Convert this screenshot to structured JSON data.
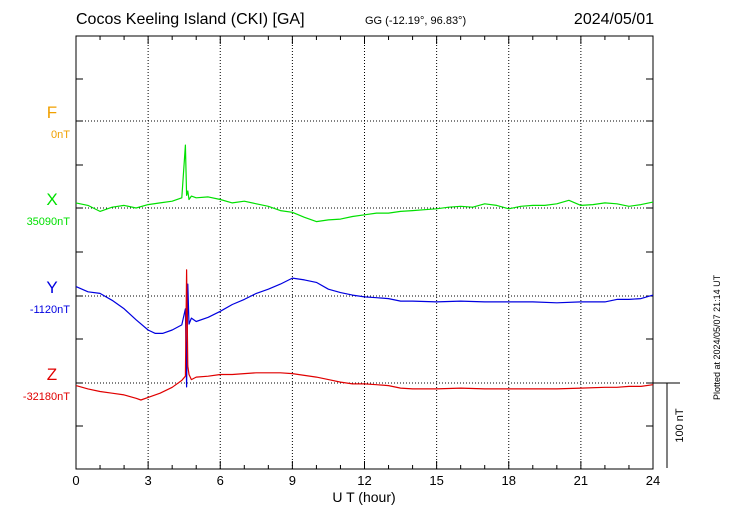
{
  "header": {
    "station": "Cocos Keeling Island (CKI)  [GA]",
    "coords": "GG (-12.19°,  96.83°)",
    "date": "2024/05/01"
  },
  "footer": {
    "plotted": "Plotted at 2024/05/07 21:14 UT"
  },
  "colors": {
    "F": "#f0a000",
    "X": "#00e000",
    "Y": "#0000e0",
    "Z": "#e00000"
  },
  "chart_data": {
    "type": "line",
    "title": "Cocos Keeling Island (CKI)  [GA]",
    "xlabel": "U T (hour)",
    "xlim": [
      0,
      24
    ],
    "xticks": [
      0,
      3,
      6,
      9,
      12,
      15,
      18,
      21,
      24
    ],
    "xtick_labels": [
      "0",
      "3",
      "6",
      "9",
      "12",
      "15",
      "18",
      "21",
      "24"
    ],
    "scale_bar_label": "100 nT",
    "scale_bar_nT": 100,
    "series": [
      {
        "name": "F",
        "baseline_label": "0nT",
        "x": [],
        "y": []
      },
      {
        "name": "X",
        "baseline_label": "35090nT",
        "x": [
          0,
          0.5,
          1,
          1.5,
          2,
          2.5,
          3,
          3.5,
          4,
          4.4,
          4.55,
          4.6,
          4.65,
          4.7,
          4.8,
          5,
          5.5,
          6,
          6.5,
          7,
          7.5,
          8,
          8.5,
          9,
          9.5,
          10,
          10.5,
          11,
          11.5,
          12,
          12.5,
          13,
          13.5,
          14,
          14.5,
          15,
          15.5,
          16,
          16.5,
          17,
          17.5,
          18,
          18.5,
          19,
          19.5,
          20,
          20.5,
          21,
          21.5,
          22,
          22.5,
          23,
          23.5,
          24
        ],
        "y": [
          6,
          3,
          -4,
          1,
          3,
          0,
          4,
          6,
          8,
          12,
          74,
          15,
          20,
          10,
          14,
          12,
          13,
          10,
          6,
          8,
          5,
          2,
          -3,
          -5,
          -11,
          -16,
          -14,
          -13,
          -10,
          -8,
          -6,
          -6,
          -4,
          -3,
          -2,
          -1,
          1,
          2,
          1,
          5,
          3,
          -1,
          2,
          3,
          3,
          5,
          9,
          3,
          4,
          6,
          5,
          2,
          4,
          7
        ]
      },
      {
        "name": "Y",
        "baseline_label": "-1120nT",
        "x": [
          0,
          0.5,
          1,
          1.5,
          2,
          2.5,
          3,
          3.3,
          3.6,
          4,
          4.4,
          4.55,
          4.6,
          4.65,
          4.7,
          4.8,
          5,
          5.5,
          6,
          6.5,
          7,
          7.5,
          8,
          8.5,
          9,
          9.5,
          10,
          10.5,
          11,
          11.5,
          12,
          12.5,
          13,
          13.5,
          14,
          15,
          16,
          17,
          18,
          19,
          20,
          21,
          22,
          22.5,
          23,
          23.5,
          24
        ],
        "y": [
          11,
          5,
          3,
          -5,
          -15,
          -28,
          -40,
          -44,
          -44,
          -40,
          -34,
          -15,
          -107,
          14,
          -33,
          -26,
          -30,
          -25,
          -18,
          -10,
          -4,
          3,
          8,
          14,
          21,
          19,
          16,
          8,
          4,
          1,
          -1,
          -2,
          -3,
          -6,
          -6,
          -7,
          -6,
          -7,
          -7,
          -7,
          -8,
          -7,
          -7,
          -4,
          -4,
          -3,
          1
        ]
      },
      {
        "name": "Z",
        "baseline_label": "-32180nT",
        "x": [
          0,
          0.5,
          1,
          1.5,
          2,
          2.5,
          2.7,
          3,
          3.5,
          4,
          4.4,
          4.55,
          4.6,
          4.65,
          4.7,
          4.8,
          5,
          5.5,
          6,
          6.5,
          7,
          7.5,
          8,
          8.5,
          9,
          9.5,
          10,
          10.5,
          11,
          11.5,
          12,
          12.5,
          13,
          13.5,
          14,
          15,
          16,
          17,
          18,
          19,
          20,
          21,
          22,
          22.5,
          23,
          23.5,
          24
        ],
        "y": [
          -3,
          -7,
          -10,
          -12,
          -14,
          -18,
          -20,
          -17,
          -12,
          -5,
          3,
          8,
          133,
          20,
          10,
          4,
          7,
          8,
          10,
          10,
          11,
          12,
          12,
          12,
          11,
          9,
          7,
          4,
          1,
          -1,
          -1,
          -2,
          -3,
          -6,
          -7,
          -7,
          -6,
          -7,
          -7,
          -7,
          -7,
          -6,
          -5,
          -5,
          -4,
          -4,
          -2
        ]
      }
    ]
  }
}
